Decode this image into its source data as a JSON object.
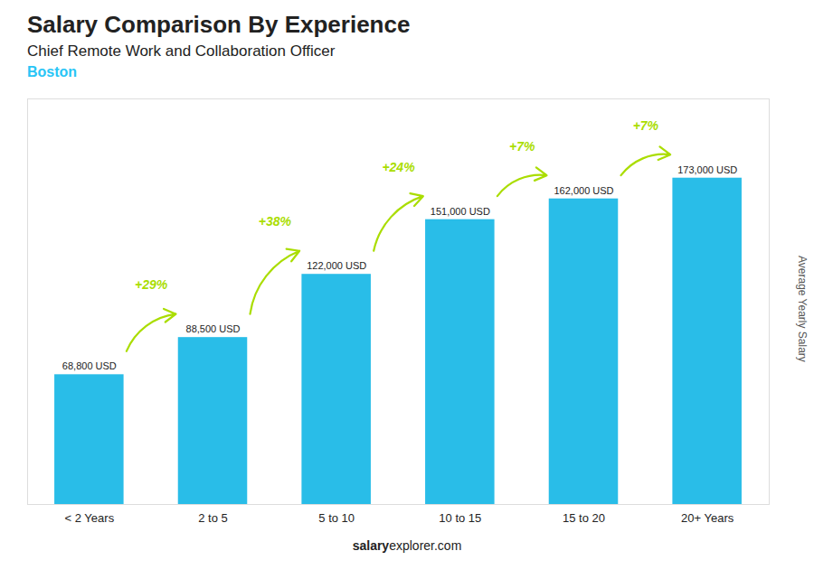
{
  "chart_data": {
    "type": "bar",
    "title": "Salary Comparison By Experience",
    "subtitle": "Chief Remote Work and Collaboration Officer",
    "categories": [
      "< 2 Years",
      "2 to 5",
      "5 to 10",
      "10 to 15",
      "15 to 20",
      "20+ Years"
    ],
    "values": [
      68800,
      88500,
      122000,
      151000,
      162000,
      173000
    ],
    "value_labels": [
      "68,800 USD",
      "88,500 USD",
      "122,000 USD",
      "151,000 USD",
      "162,000 USD",
      "173,000 USD"
    ],
    "data_labels": true,
    "color": "#29bde8",
    "ylim": [
      0,
      215000
    ],
    "ylabel": "Average Yearly Salary",
    "tick_labels": "x",
    "grid": false,
    "annotations": [
      {
        "text": "Boston",
        "color": "#29c5f6"
      },
      {
        "text": "+29%",
        "from": "< 2 Years",
        "to": "2 to 5",
        "color": "#aadd00"
      },
      {
        "text": "+38%",
        "from": "2 to 5",
        "to": "5 to 10",
        "color": "#aadd00"
      },
      {
        "text": "+24%",
        "from": "5 to 10",
        "to": "10 to 15",
        "color": "#aadd00"
      },
      {
        "text": "+7%",
        "from": "10 to 15",
        "to": "15 to 20",
        "color": "#aadd00"
      },
      {
        "text": "+7%",
        "from": "15 to 20",
        "to": "20+ Years",
        "color": "#aadd00"
      }
    ],
    "caption": [
      "salary",
      "explorer.com"
    ]
  }
}
